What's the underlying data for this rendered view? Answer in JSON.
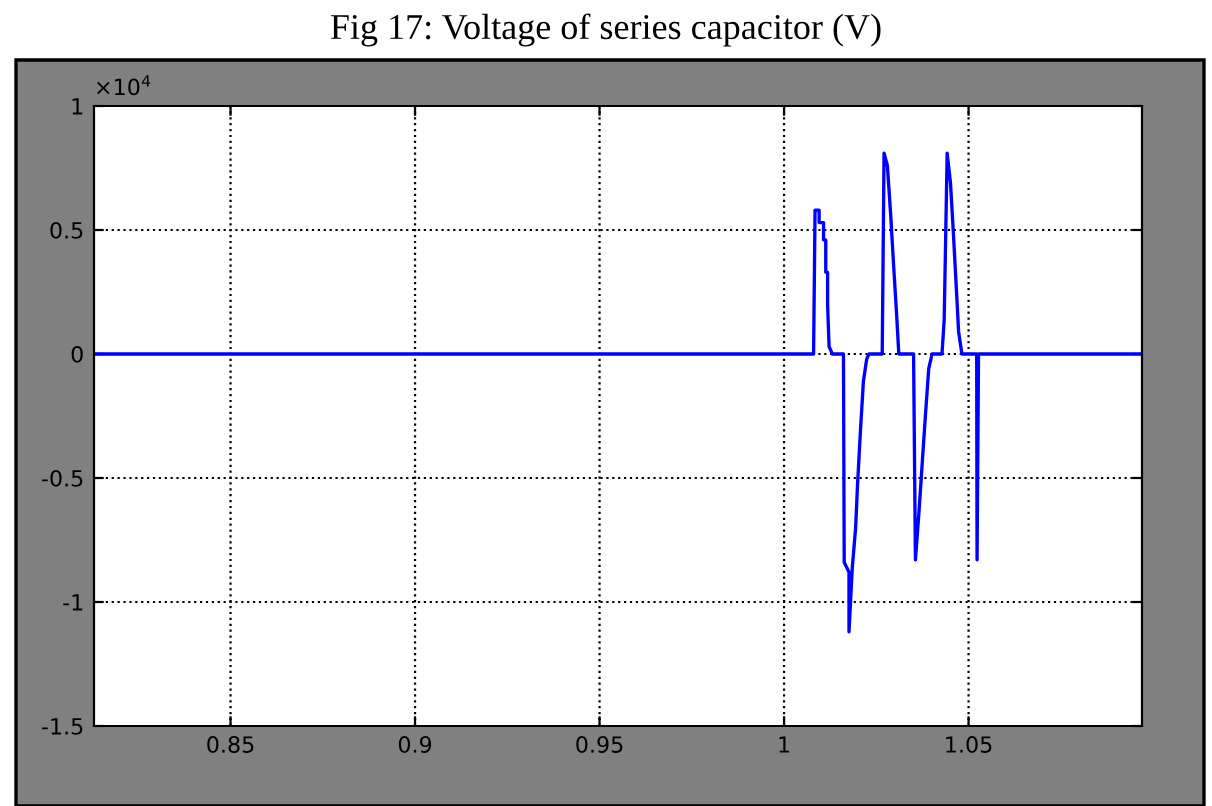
{
  "chart_data": {
    "type": "line",
    "title": "Fig 17: Voltage of series capacitor (V)",
    "annotations": [
      "×10$^{4}$"
    ],
    "series": [
      {
        "color": "#0000ff",
        "x": [
          0.813,
          1.008,
          1.0084,
          1.0095,
          1.0095,
          1.0107,
          1.0107,
          1.0113,
          1.0113,
          1.0118,
          1.0118,
          1.0122,
          1.0131,
          1.0161,
          1.0163,
          1.0176,
          1.0176,
          1.0185,
          1.0194,
          1.0199,
          1.0207,
          1.0215,
          1.0224,
          1.023,
          1.0266,
          1.0271,
          1.028,
          1.0289,
          1.0296,
          1.0305,
          1.0311,
          1.0351,
          1.0356,
          1.0365,
          1.0374,
          1.0383,
          1.0392,
          1.0401,
          1.0428,
          1.0434,
          1.0442,
          1.0451,
          1.0458,
          1.0466,
          1.0473,
          1.0482,
          1.0522,
          1.0523,
          1.0527,
          1.097
        ],
        "values": [
          0,
          0,
          0.58,
          0.58,
          0.53,
          0.53,
          0.46,
          0.46,
          0.33,
          0.33,
          0.2,
          0.03,
          0,
          0,
          -0.84,
          -0.88,
          -1.12,
          -0.86,
          -0.7,
          -0.53,
          -0.31,
          -0.11,
          -0.02,
          0,
          0,
          0.81,
          0.76,
          0.56,
          0.38,
          0.16,
          0,
          0,
          -0.83,
          -0.65,
          -0.45,
          -0.25,
          -0.06,
          0,
          0,
          0.14,
          0.81,
          0.69,
          0.51,
          0.29,
          0.09,
          0,
          0,
          -0.83,
          0,
          0
        ]
      }
    ],
    "xlim": [
      0.813,
      1.097
    ],
    "xticks": [
      0.85,
      0.9,
      0.95,
      1,
      1.05
    ],
    "ylim": [
      -1.5,
      1
    ],
    "yticks": [
      -1.5,
      -1,
      -0.5,
      0,
      0.5,
      1
    ],
    "grid": true,
    "line_style": "solid",
    "marker": "none"
  }
}
